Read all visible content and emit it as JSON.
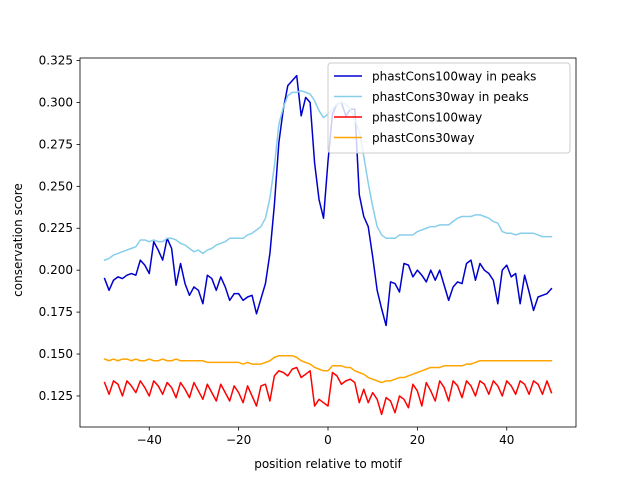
{
  "chart_data": {
    "type": "line",
    "title": "",
    "xlabel": "position relative to motif",
    "ylabel": "conservation score",
    "xlim": [
      -55.5,
      55.5
    ],
    "ylim": [
      0.1065,
      0.3265
    ],
    "xticks": [
      -40,
      -20,
      0,
      20,
      40
    ],
    "xtick_labels": [
      "−40",
      "−20",
      "0",
      "20",
      "40"
    ],
    "yticks": [
      0.125,
      0.15,
      0.175,
      0.2,
      0.225,
      0.25,
      0.275,
      0.3,
      0.325
    ],
    "ytick_labels": [
      "0.125",
      "0.150",
      "0.175",
      "0.200",
      "0.225",
      "0.250",
      "0.275",
      "0.300",
      "0.325"
    ],
    "legend_position": "top-right",
    "x_start": -50,
    "x_end": 50,
    "series": [
      {
        "name": "phastCons100way in peaks",
        "color": "#0000cd",
        "values": [
          0.195,
          0.188,
          0.194,
          0.196,
          0.195,
          0.197,
          0.198,
          0.197,
          0.206,
          0.203,
          0.198,
          0.217,
          0.212,
          0.206,
          0.219,
          0.213,
          0.191,
          0.204,
          0.192,
          0.185,
          0.19,
          0.188,
          0.18,
          0.197,
          0.195,
          0.188,
          0.196,
          0.19,
          0.182,
          0.186,
          0.186,
          0.182,
          0.184,
          0.185,
          0.174,
          0.183,
          0.192,
          0.21,
          0.239,
          0.276,
          0.296,
          0.31,
          0.313,
          0.316,
          0.292,
          0.303,
          0.3,
          0.264,
          0.242,
          0.231,
          0.265,
          0.293,
          0.299,
          0.3,
          0.292,
          0.296,
          0.296,
          0.245,
          0.232,
          0.226,
          0.208,
          0.188,
          0.177,
          0.167,
          0.193,
          0.192,
          0.187,
          0.204,
          0.203,
          0.196,
          0.2,
          0.197,
          0.193,
          0.2,
          0.194,
          0.2,
          0.191,
          0.182,
          0.19,
          0.193,
          0.192,
          0.204,
          0.206,
          0.194,
          0.204,
          0.2,
          0.198,
          0.194,
          0.18,
          0.2,
          0.203,
          0.196,
          0.198,
          0.18,
          0.197,
          0.187,
          0.176,
          0.184,
          0.185,
          0.186,
          0.189
        ]
      },
      {
        "name": "phastCons30way in peaks",
        "color": "#87ceeb",
        "values": [
          0.206,
          0.207,
          0.209,
          0.21,
          0.211,
          0.212,
          0.213,
          0.214,
          0.218,
          0.218,
          0.217,
          0.218,
          0.217,
          0.217,
          0.219,
          0.219,
          0.218,
          0.216,
          0.215,
          0.213,
          0.211,
          0.212,
          0.21,
          0.212,
          0.213,
          0.215,
          0.216,
          0.217,
          0.219,
          0.219,
          0.219,
          0.219,
          0.221,
          0.222,
          0.224,
          0.226,
          0.231,
          0.243,
          0.262,
          0.287,
          0.297,
          0.304,
          0.306,
          0.306,
          0.307,
          0.306,
          0.305,
          0.301,
          0.295,
          0.291,
          0.293,
          0.296,
          0.299,
          0.3,
          0.299,
          0.296,
          0.29,
          0.283,
          0.268,
          0.252,
          0.238,
          0.226,
          0.221,
          0.219,
          0.219,
          0.219,
          0.221,
          0.221,
          0.221,
          0.221,
          0.223,
          0.224,
          0.225,
          0.226,
          0.226,
          0.227,
          0.227,
          0.227,
          0.229,
          0.231,
          0.232,
          0.232,
          0.232,
          0.233,
          0.233,
          0.232,
          0.231,
          0.229,
          0.228,
          0.223,
          0.222,
          0.222,
          0.221,
          0.222,
          0.222,
          0.222,
          0.222,
          0.221,
          0.22,
          0.22,
          0.22
        ]
      },
      {
        "name": "phastCons100way",
        "color": "#ff0000",
        "values": [
          0.133,
          0.126,
          0.134,
          0.132,
          0.125,
          0.134,
          0.131,
          0.127,
          0.134,
          0.13,
          0.125,
          0.134,
          0.131,
          0.126,
          0.133,
          0.13,
          0.124,
          0.133,
          0.129,
          0.124,
          0.133,
          0.128,
          0.123,
          0.132,
          0.127,
          0.122,
          0.132,
          0.127,
          0.122,
          0.131,
          0.127,
          0.121,
          0.131,
          0.125,
          0.119,
          0.131,
          0.132,
          0.122,
          0.137,
          0.14,
          0.139,
          0.137,
          0.141,
          0.142,
          0.136,
          0.138,
          0.14,
          0.119,
          0.123,
          0.121,
          0.119,
          0.139,
          0.137,
          0.132,
          0.134,
          0.135,
          0.133,
          0.121,
          0.129,
          0.121,
          0.127,
          0.123,
          0.114,
          0.124,
          0.122,
          0.115,
          0.125,
          0.123,
          0.118,
          0.132,
          0.128,
          0.119,
          0.133,
          0.128,
          0.122,
          0.134,
          0.13,
          0.122,
          0.134,
          0.131,
          0.124,
          0.134,
          0.131,
          0.125,
          0.134,
          0.132,
          0.126,
          0.134,
          0.131,
          0.125,
          0.134,
          0.131,
          0.126,
          0.134,
          0.132,
          0.126,
          0.134,
          0.132,
          0.126,
          0.134,
          0.127
        ]
      },
      {
        "name": "phastCons30way",
        "color": "#ffa500",
        "values": [
          0.147,
          0.146,
          0.147,
          0.146,
          0.147,
          0.147,
          0.146,
          0.147,
          0.146,
          0.146,
          0.147,
          0.146,
          0.146,
          0.147,
          0.146,
          0.146,
          0.147,
          0.146,
          0.146,
          0.146,
          0.146,
          0.146,
          0.146,
          0.145,
          0.145,
          0.145,
          0.145,
          0.145,
          0.145,
          0.145,
          0.145,
          0.144,
          0.145,
          0.144,
          0.144,
          0.144,
          0.145,
          0.146,
          0.148,
          0.149,
          0.149,
          0.149,
          0.149,
          0.148,
          0.146,
          0.145,
          0.144,
          0.142,
          0.141,
          0.14,
          0.14,
          0.143,
          0.143,
          0.143,
          0.142,
          0.142,
          0.14,
          0.139,
          0.138,
          0.136,
          0.135,
          0.134,
          0.133,
          0.134,
          0.134,
          0.135,
          0.136,
          0.136,
          0.137,
          0.138,
          0.139,
          0.14,
          0.141,
          0.142,
          0.142,
          0.142,
          0.143,
          0.143,
          0.143,
          0.143,
          0.143,
          0.144,
          0.144,
          0.145,
          0.146,
          0.146,
          0.146,
          0.146,
          0.146,
          0.146,
          0.146,
          0.146,
          0.146,
          0.146,
          0.146,
          0.146,
          0.146,
          0.146,
          0.146,
          0.146,
          0.146
        ]
      }
    ]
  }
}
